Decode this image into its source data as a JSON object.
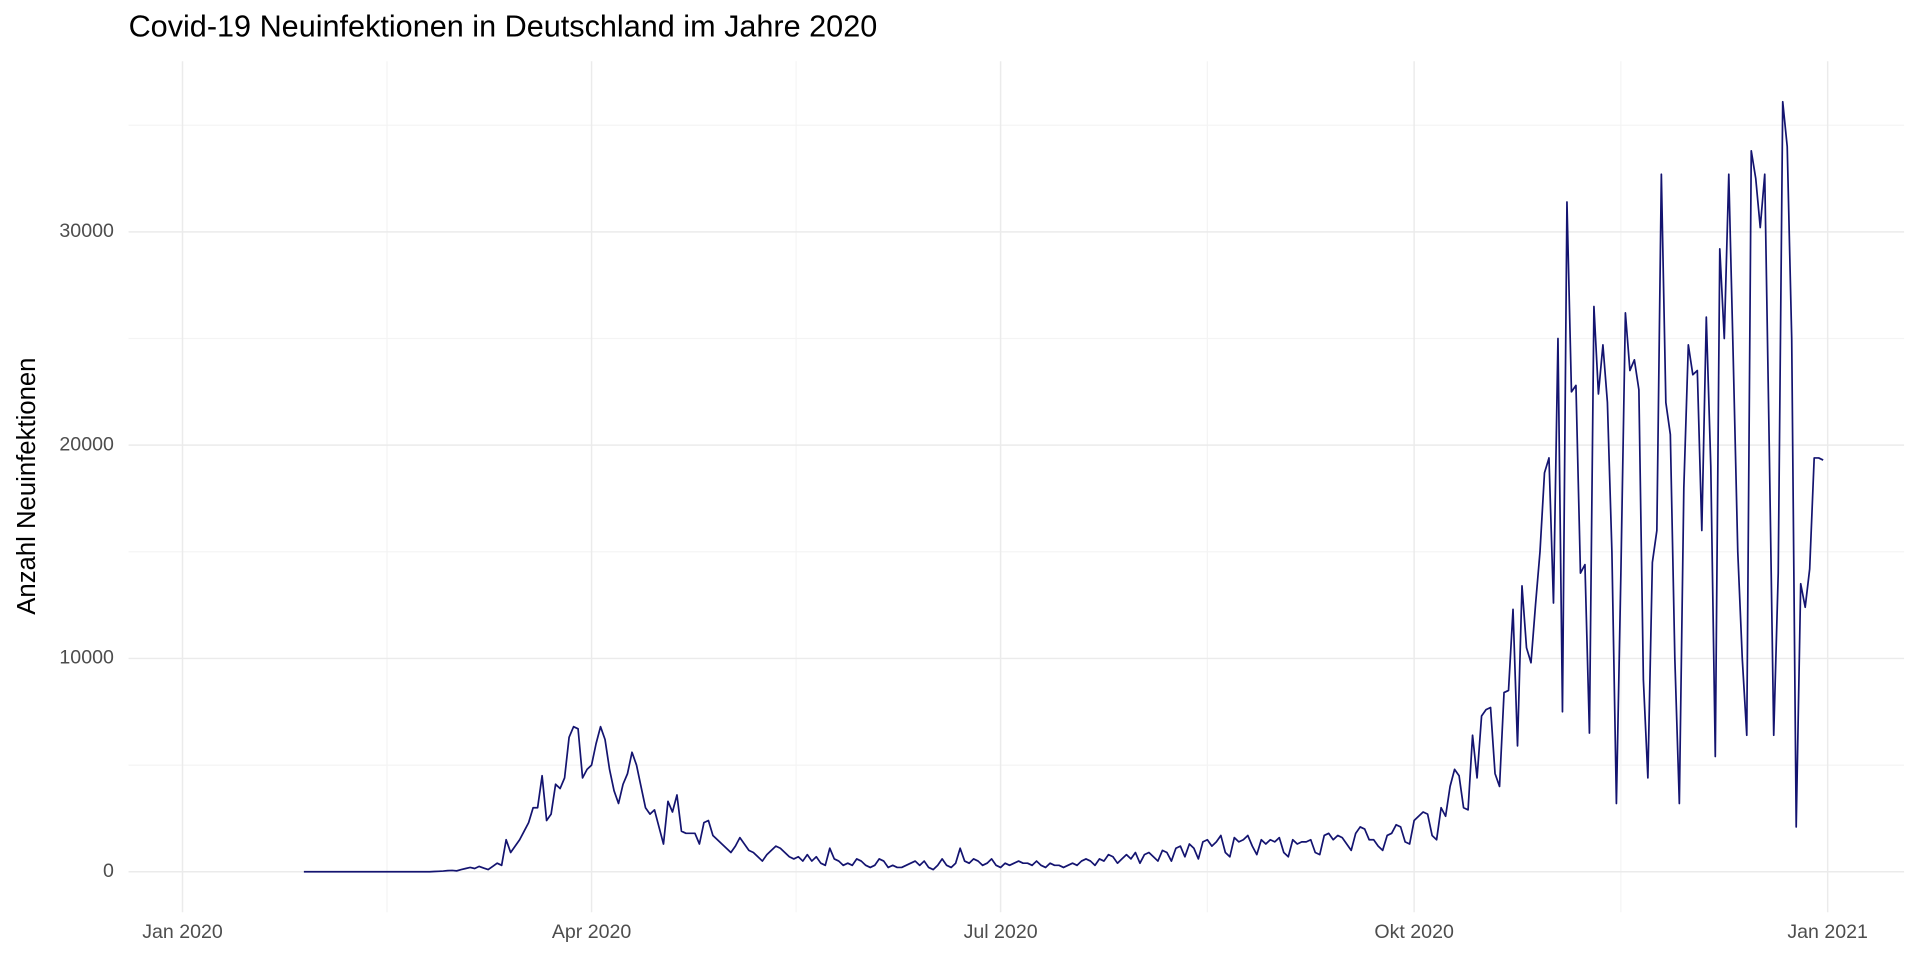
{
  "chart_data": {
    "type": "line",
    "title": "Covid-19 Neuinfektionen in Deutschland im Jahre 2020",
    "ylabel": "Anzahl Neuinfektionen",
    "color": "#141470",
    "grid": true,
    "xlim": [
      -12,
      383
    ],
    "xticks": [
      {
        "value": 0,
        "label": "Jan 2020"
      },
      {
        "value": 91,
        "label": "Apr 2020"
      },
      {
        "value": 182,
        "label": "Jul 2020"
      },
      {
        "value": 274,
        "label": "Okt 2020"
      },
      {
        "value": 366,
        "label": "Jan 2021"
      }
    ],
    "ylim": [
      -1900,
      38000
    ],
    "yticks": [
      0,
      10000,
      20000,
      30000
    ],
    "x": [
      27,
      28,
      29,
      30,
      31,
      32,
      33,
      34,
      35,
      36,
      37,
      38,
      39,
      40,
      41,
      42,
      43,
      44,
      45,
      46,
      47,
      48,
      49,
      50,
      51,
      52,
      53,
      54,
      55,
      56,
      57,
      58,
      59,
      60,
      61,
      62,
      63,
      64,
      65,
      66,
      67,
      68,
      69,
      70,
      71,
      72,
      73,
      74,
      75,
      76,
      77,
      78,
      79,
      80,
      81,
      82,
      83,
      84,
      85,
      86,
      87,
      88,
      89,
      90,
      91,
      92,
      93,
      94,
      95,
      96,
      97,
      98,
      99,
      100,
      101,
      102,
      103,
      104,
      105,
      106,
      107,
      108,
      109,
      110,
      111,
      112,
      113,
      114,
      115,
      116,
      117,
      118,
      119,
      120,
      121,
      122,
      123,
      124,
      125,
      126,
      127,
      128,
      129,
      130,
      131,
      132,
      133,
      134,
      135,
      136,
      137,
      138,
      139,
      140,
      141,
      142,
      143,
      144,
      145,
      146,
      147,
      148,
      149,
      150,
      151,
      152,
      153,
      154,
      155,
      156,
      157,
      158,
      159,
      160,
      161,
      162,
      163,
      164,
      165,
      166,
      167,
      168,
      169,
      170,
      171,
      172,
      173,
      174,
      175,
      176,
      177,
      178,
      179,
      180,
      181,
      182,
      183,
      184,
      185,
      186,
      187,
      188,
      189,
      190,
      191,
      192,
      193,
      194,
      195,
      196,
      197,
      198,
      199,
      200,
      201,
      202,
      203,
      204,
      205,
      206,
      207,
      208,
      209,
      210,
      211,
      212,
      213,
      214,
      215,
      216,
      217,
      218,
      219,
      220,
      221,
      222,
      223,
      224,
      225,
      226,
      227,
      228,
      229,
      230,
      231,
      232,
      233,
      234,
      235,
      236,
      237,
      238,
      239,
      240,
      241,
      242,
      243,
      244,
      245,
      246,
      247,
      248,
      249,
      250,
      251,
      252,
      253,
      254,
      255,
      256,
      257,
      258,
      259,
      260,
      261,
      262,
      263,
      264,
      265,
      266,
      267,
      268,
      269,
      270,
      271,
      272,
      273,
      274,
      275,
      276,
      277,
      278,
      279,
      280,
      281,
      282,
      283,
      284,
      285,
      286,
      287,
      288,
      289,
      290,
      291,
      292,
      293,
      294,
      295,
      296,
      297,
      298,
      299,
      300,
      301,
      302,
      303,
      304,
      305,
      306,
      307,
      308,
      309,
      310,
      311,
      312,
      313,
      314,
      315,
      316,
      317,
      318,
      319,
      320,
      321,
      322,
      323,
      324,
      325,
      326,
      327,
      328,
      329,
      330,
      331,
      332,
      333,
      334,
      335,
      336,
      337,
      338,
      339,
      340,
      341,
      342,
      343,
      344,
      345,
      346,
      347,
      348,
      349,
      350,
      351,
      352,
      353,
      354,
      355,
      356,
      357,
      358,
      359,
      360,
      361,
      362,
      363,
      364,
      365
    ],
    "values": [
      0,
      0,
      0,
      0,
      0,
      0,
      0,
      0,
      0,
      0,
      0,
      0,
      0,
      0,
      0,
      0,
      0,
      0,
      0,
      0,
      0,
      0,
      0,
      0,
      0,
      0,
      0,
      0,
      0,
      10,
      20,
      30,
      50,
      60,
      40,
      100,
      150,
      200,
      150,
      250,
      170,
      100,
      250,
      400,
      300,
      1500,
      900,
      1200,
      1500,
      1900,
      2300,
      3000,
      3000,
      4500,
      2400,
      2700,
      4100,
      3900,
      4400,
      6300,
      6800,
      6700,
      4400,
      4800,
      5000,
      6000,
      6800,
      6200,
      4800,
      3800,
      3200,
      4100,
      4600,
      5600,
      5000,
      4000,
      3000,
      2700,
      2900,
      2100,
      1300,
      3300,
      2800,
      3600,
      1900,
      1800,
      1800,
      1800,
      1300,
      2300,
      2400,
      1700,
      1500,
      1300,
      1100,
      900,
      1200,
      1600,
      1300,
      1000,
      900,
      700,
      500,
      800,
      1000,
      1200,
      1100,
      900,
      700,
      600,
      700,
      500,
      800,
      500,
      700,
      400,
      300,
      1100,
      600,
      500,
      300,
      400,
      300,
      600,
      500,
      300,
      200,
      300,
      600,
      500,
      200,
      300,
      200,
      200,
      300,
      400,
      500,
      300,
      500,
      200,
      100,
      300,
      600,
      300,
      200,
      400,
      1100,
      500,
      400,
      600,
      500,
      300,
      400,
      600,
      300,
      200,
      400,
      300,
      400,
      500,
      400,
      400,
      300,
      500,
      300,
      200,
      400,
      300,
      300,
      200,
      300,
      400,
      300,
      500,
      600,
      500,
      300,
      600,
      500,
      800,
      700,
      400,
      600,
      800,
      600,
      900,
      400,
      800,
      900,
      700,
      500,
      1000,
      900,
      500,
      1100,
      1200,
      700,
      1300,
      1100,
      600,
      1400,
      1500,
      1200,
      1400,
      1700,
      900,
      700,
      1600,
      1400,
      1500,
      1700,
      1200,
      800,
      1500,
      1300,
      1500,
      1400,
      1600,
      900,
      700,
      1500,
      1300,
      1400,
      1400,
      1500,
      900,
      800,
      1700,
      1800,
      1500,
      1700,
      1600,
      1300,
      1000,
      1800,
      2100,
      2000,
      1500,
      1500,
      1200,
      1000,
      1700,
      1800,
      2200,
      2100,
      1400,
      1300,
      2400,
      2600,
      2800,
      2700,
      1700,
      1500,
      3000,
      2600,
      4000,
      4800,
      4500,
      3000,
      2900,
      6400,
      4400,
      7300,
      7600,
      7700,
      4600,
      4000,
      8400,
      8500,
      12300,
      5900,
      13400,
      10500,
      9800,
      12500,
      15000,
      18700,
      19400,
      12600,
      25000,
      7500,
      31400,
      22500,
      22800,
      14000,
      14400,
      6500,
      26500,
      22400,
      24700,
      22000,
      15000,
      3200,
      14000,
      26200,
      23500,
      24000,
      22600,
      9000,
      4400,
      14500,
      16000,
      32700,
      22000,
      20500,
      10000,
      3200,
      18000,
      24700,
      23300,
      23500,
      16000,
      26000,
      19000,
      5400,
      29200,
      25000,
      32700,
      24000,
      15000,
      10000,
      6400,
      33800,
      32500,
      30200,
      32700,
      20000,
      6400,
      14000,
      36100,
      34000,
      25000,
      2100,
      13500,
      12400,
      14200,
      19400,
      19400,
      19300
    ]
  }
}
